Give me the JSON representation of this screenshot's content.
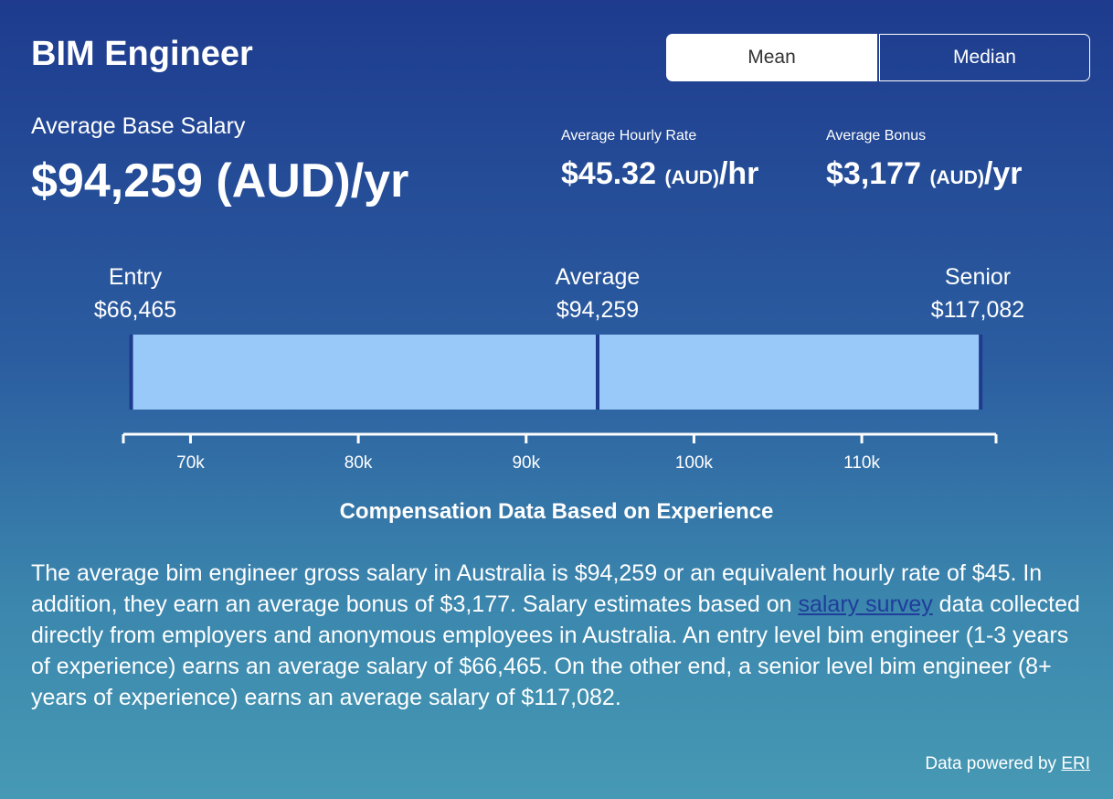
{
  "header": {
    "title": "BIM Engineer",
    "toggle": {
      "mean_label": "Mean",
      "median_label": "Median",
      "selected": "Mean"
    }
  },
  "salary": {
    "base_label": "Average Base Salary",
    "base_value": "$94,259 (AUD)/yr",
    "hourly": {
      "label": "Average Hourly Rate",
      "amount": "$45.32",
      "currency": "(AUD)",
      "unit": "/hr"
    },
    "bonus": {
      "label": "Average Bonus",
      "amount": "$3,177",
      "currency": "(AUD)",
      "unit": "/yr"
    }
  },
  "levels": {
    "entry": {
      "label": "Entry",
      "value": "$66,465"
    },
    "average": {
      "label": "Average",
      "value": "$94,259"
    },
    "senior": {
      "label": "Senior",
      "value": "$117,082"
    }
  },
  "chart_data": {
    "type": "bar",
    "range_start": 66465,
    "range_end": 117082,
    "marker": 94259,
    "xticks": [
      70000,
      80000,
      90000,
      100000,
      110000
    ],
    "xtick_labels": [
      "70k",
      "80k",
      "90k",
      "100k",
      "110k"
    ],
    "xlim": [
      66000,
      118000
    ],
    "bar_color": "#99c9f8",
    "edge_color": "#1e3b8e",
    "title": "Compensation Data Based on Experience"
  },
  "description": {
    "part1": "The average bim engineer gross salary in Australia is $94,259 or an equivalent hourly rate of $45. In addition, they earn an average bonus of $3,177. Salary estimates based on ",
    "link": "salary survey",
    "part2": " data collected directly from employers and anonymous employees in Australia. An entry level bim engineer (1-3 years of experience) earns an average salary of $66,465. On the other end, a senior level bim engineer (8+ years of experience) earns an average salary of $117,082."
  },
  "footer": {
    "text": "Data powered by ",
    "link": "ERI"
  }
}
